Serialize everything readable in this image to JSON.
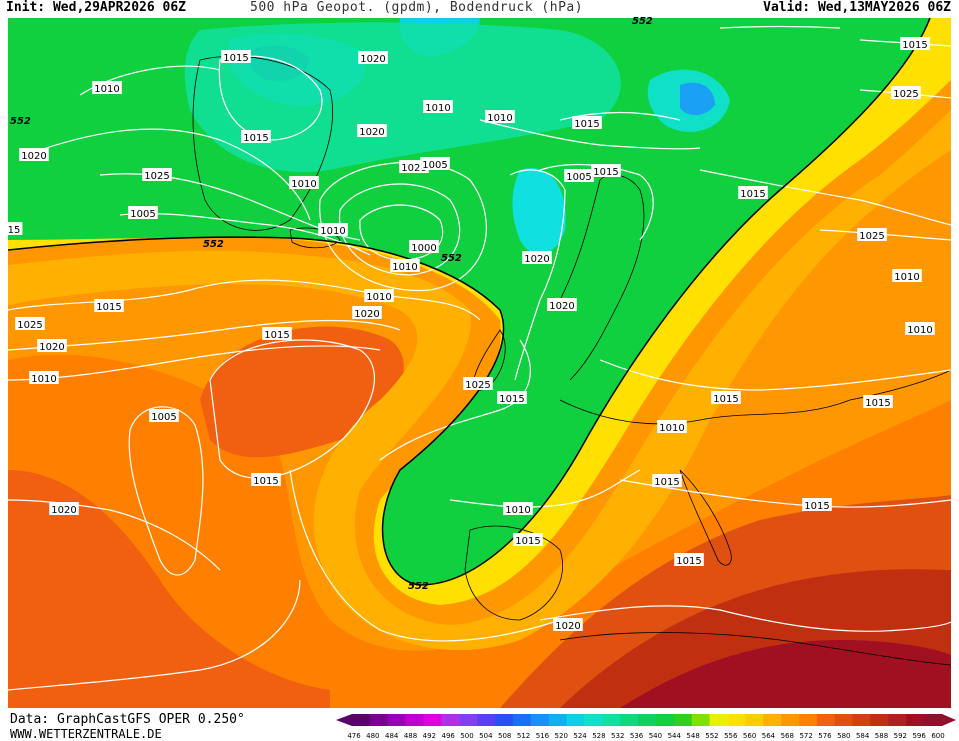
{
  "header": {
    "init": "Init: Wed,29APR2026 06Z",
    "title": "500 hPa Geopot. (gpdm), Bodendruck (hPa)",
    "valid": "Valid: Wed,13MAY2026 06Z"
  },
  "footer": {
    "data_source": "Data: GraphCastGFS OPER 0.250°",
    "website": "WWW.WETTERZENTRALE.DE"
  },
  "colorbar": {
    "ticks": [
      "476",
      "480",
      "484",
      "488",
      "492",
      "496",
      "500",
      "504",
      "508",
      "512",
      "516",
      "520",
      "524",
      "528",
      "532",
      "536",
      "540",
      "544",
      "548",
      "552",
      "556",
      "560",
      "564",
      "568",
      "572",
      "576",
      "580",
      "584",
      "588",
      "592",
      "596",
      "600"
    ],
    "colors": [
      "#5a0069",
      "#7a0090",
      "#9a00b5",
      "#c000d0",
      "#e000e0",
      "#b030e8",
      "#8040f0",
      "#5a40f5",
      "#2a50f5",
      "#1a70f5",
      "#1890f5",
      "#10b0f0",
      "#10d0e8",
      "#10e0c8",
      "#10e0a0",
      "#10d880",
      "#10d060",
      "#10d040",
      "#30d020",
      "#80e000",
      "#e8f000",
      "#ffe000",
      "#ffcc00",
      "#ffb000",
      "#ff9800",
      "#ff8000",
      "#f06010",
      "#e05010",
      "#d04010",
      "#c03010",
      "#b02020",
      "#a01020",
      "#901030"
    ]
  },
  "map": {
    "geopotential_label": "552",
    "pressure_labels": [
      "1015",
      "1010",
      "1020",
      "1010",
      "1015",
      "1020",
      "1010",
      "1015",
      "1020",
      "1025",
      "1010",
      "1005",
      "1010",
      "1020",
      "1005",
      "1000",
      "1010",
      "1005",
      "1015",
      "1010",
      "1015",
      "1020",
      "1025",
      "1020",
      "1015",
      "1010",
      "1005",
      "1015",
      "1020",
      "1025",
      "1015",
      "1020",
      "1020",
      "1025",
      "1025",
      "1015",
      "1015",
      "1010",
      "1010",
      "1015",
      "1015",
      "1010",
      "1015",
      "1015",
      "1010",
      "1015",
      "1015",
      "1020",
      "15"
    ]
  }
}
